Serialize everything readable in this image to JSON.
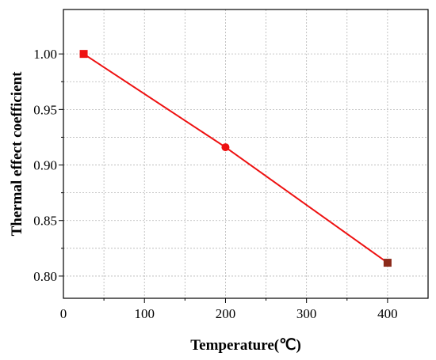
{
  "chart_data": {
    "type": "line",
    "title": "",
    "xlabel": "Temperature(℃)",
    "ylabel": "Thermal effect coefficient",
    "xlim": [
      0,
      450
    ],
    "ylim": [
      0.78,
      1.04
    ],
    "grid": true,
    "x_ticks": [
      "0",
      "100",
      "200",
      "300",
      "400"
    ],
    "y_ticks": [
      "0.80",
      "0.85",
      "0.90",
      "0.95",
      "1.00"
    ],
    "x_tick_values": [
      0,
      100,
      200,
      300,
      400
    ],
    "y_tick_values": [
      0.8,
      0.85,
      0.9,
      0.95,
      1.0
    ],
    "series": [
      {
        "x": [
          25,
          200,
          400
        ],
        "y": [
          1.0,
          0.916,
          0.812
        ],
        "line_color": "#ee1111",
        "markers": [
          "square",
          "circle",
          "square"
        ],
        "marker_colors": [
          "#ee1111",
          "#ee1111",
          "#8b2a1a"
        ]
      }
    ]
  }
}
